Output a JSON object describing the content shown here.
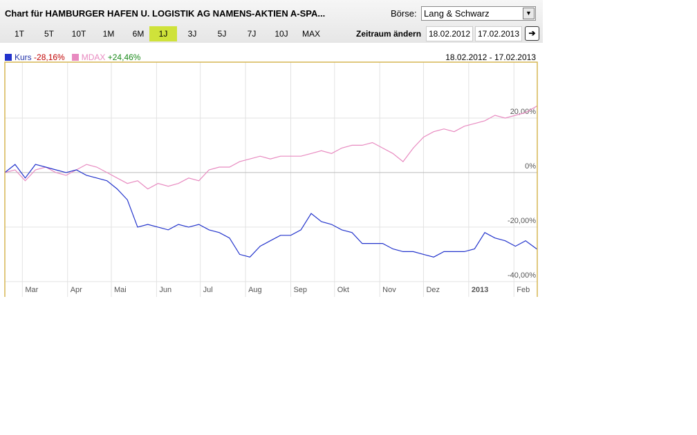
{
  "header": {
    "title": "Chart für HAMBURGER HAFEN U. LOGISTIK AG NAMENS-AKTIEN A-SPA...",
    "exchange_label": "Börse:",
    "exchange": "Lang & Schwarz"
  },
  "toolbar": {
    "ranges": [
      "1T",
      "5T",
      "10T",
      "1M",
      "6M",
      "1J",
      "3J",
      "5J",
      "7J",
      "10J",
      "MAX"
    ],
    "active_range": 5,
    "period_label": "Zeitraum ändern",
    "from": "18.02.2012",
    "to": "17.02.2013"
  },
  "date_range": "18.02.2012 - 17.02.2013",
  "chart_data": {
    "type": "line",
    "x": [
      0,
      7,
      14,
      21,
      28,
      35,
      42,
      49,
      56,
      63,
      70,
      77,
      84,
      91,
      98,
      105,
      112,
      119,
      126,
      133,
      140,
      147,
      154,
      161,
      168,
      175,
      182,
      189,
      196,
      203,
      210,
      217,
      224,
      231,
      238,
      245,
      252,
      259,
      266,
      273,
      280,
      287,
      294,
      301,
      308,
      315,
      322,
      329,
      336,
      343,
      350,
      357,
      365
    ],
    "series": [
      {
        "name": "Kurs",
        "change": "-28,16%",
        "color": "#2233cc",
        "values": [
          0,
          3,
          -2,
          3,
          2,
          1,
          0,
          1,
          -1,
          -2,
          -3,
          -6,
          -10,
          -20,
          -19,
          -20,
          -21,
          -19,
          -20,
          -19,
          -21,
          -22,
          -24,
          -30,
          -31,
          -27,
          -25,
          -23,
          -23,
          -21,
          -15,
          -18,
          -19,
          -21,
          -22,
          -26,
          -26,
          -26,
          -28,
          -29,
          -29,
          -30,
          -31,
          -29,
          -29,
          -29,
          -28,
          -22,
          -24,
          -25,
          -27,
          -25,
          -28.16
        ]
      },
      {
        "name": "MDAX",
        "change": "+24,46%",
        "color": "#e88ac0",
        "values": [
          0,
          1,
          -3,
          1,
          2,
          0,
          -1,
          1,
          3,
          2,
          0,
          -2,
          -4,
          -3,
          -6,
          -4,
          -5,
          -4,
          -2,
          -3,
          1,
          2,
          2,
          4,
          5,
          6,
          5,
          6,
          6,
          6,
          7,
          8,
          7,
          9,
          10,
          10,
          11,
          9,
          7,
          4,
          9,
          13,
          15,
          16,
          15,
          17,
          18,
          19,
          21,
          20,
          21,
          22,
          24.46
        ]
      }
    ],
    "xlim": [
      0,
      365
    ],
    "xticks": [
      {
        "value": 12,
        "label": "Mar"
      },
      {
        "value": 43,
        "label": "Apr"
      },
      {
        "value": 73,
        "label": "Mai"
      },
      {
        "value": 104,
        "label": "Jun"
      },
      {
        "value": 134,
        "label": "Jul"
      },
      {
        "value": 165,
        "label": "Aug"
      },
      {
        "value": 196,
        "label": "Sep"
      },
      {
        "value": 226,
        "label": "Okt"
      },
      {
        "value": 257,
        "label": "Nov"
      },
      {
        "value": 287,
        "label": "Dez"
      },
      {
        "value": 318,
        "label": "2013"
      },
      {
        "value": 349,
        "label": "Feb"
      }
    ],
    "ylim": [
      -45.6,
      40.5
    ],
    "yticks": [
      {
        "value": 20,
        "label": "20,00%"
      },
      {
        "value": 0,
        "label": "0%"
      },
      {
        "value": -20,
        "label": "-20,00%"
      },
      {
        "value": -40,
        "label": "-40,00%"
      }
    ],
    "grid": true
  }
}
